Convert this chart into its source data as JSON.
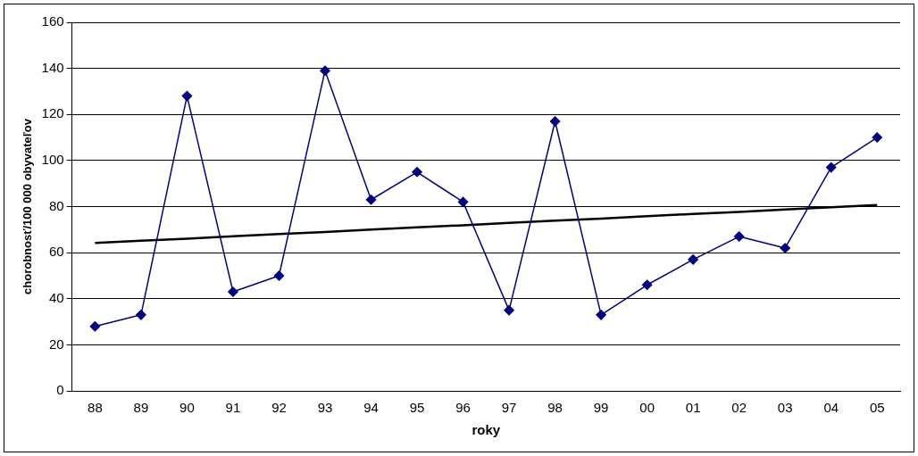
{
  "chart_data": {
    "type": "line",
    "xlabel": "roky",
    "ylabel": "chorobnosť/100 000 obyvateľov",
    "categories": [
      "88",
      "89",
      "90",
      "91",
      "92",
      "93",
      "94",
      "95",
      "96",
      "97",
      "98",
      "99",
      "00",
      "01",
      "02",
      "03",
      "04",
      "05"
    ],
    "series": [
      {
        "color": "#000080",
        "marker": "diamond",
        "values": [
          28,
          33,
          128,
          43,
          50,
          139,
          83,
          95,
          82,
          35,
          117,
          33,
          46,
          57,
          67,
          62,
          97,
          110
        ]
      },
      {
        "color": "#000000",
        "marker": "none",
        "values": [
          64.2,
          65.2,
          66.1,
          67.1,
          68.1,
          69.0,
          70.0,
          71.0,
          71.9,
          72.9,
          73.9,
          74.8,
          75.8,
          76.8,
          77.7,
          78.7,
          79.7,
          80.7
        ]
      }
    ],
    "ylim": [
      0,
      160
    ],
    "yticks": [
      0,
      20,
      40,
      60,
      80,
      100,
      120,
      140,
      160
    ],
    "grid": "y",
    "legend": false
  }
}
